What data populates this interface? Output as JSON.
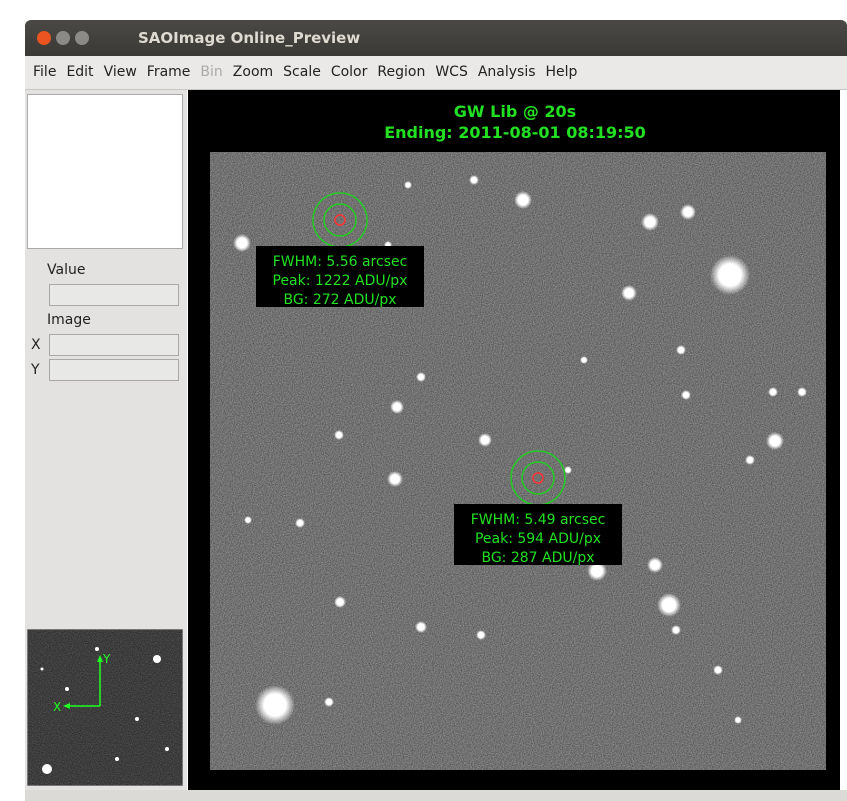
{
  "window": {
    "title": "SAOImage Online_Preview"
  },
  "menu": [
    "File",
    "Edit",
    "View",
    "Frame",
    "Bin",
    "Zoom",
    "Scale",
    "Color",
    "Region",
    "WCS",
    "Analysis",
    "Help"
  ],
  "panel": {
    "value_label": "Value",
    "image_label": "Image",
    "x_label": "X",
    "y_label": "Y"
  },
  "image": {
    "title": "GW Lib @ 20s",
    "subtitle": "Ending: 2011-08-01 08:19:50",
    "sources": [
      {
        "lines": [
          "FWHM: 5.56 arcsec",
          "Peak: 1222 ADU/px",
          "BG: 272 ADU/px"
        ]
      },
      {
        "lines": [
          "FWHM: 5.49 arcsec",
          "Peak: 594 ADU/px",
          "BG: 287 ADU/px"
        ]
      }
    ]
  },
  "panner": {
    "x_axis": "X",
    "y_axis": "Y"
  }
}
